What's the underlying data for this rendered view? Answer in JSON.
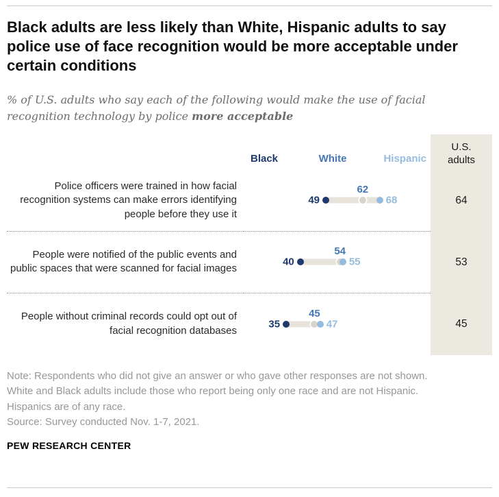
{
  "header": {
    "title": "Black adults are less likely than White, Hispanic adults to say police use of face recognition would be more acceptable under certain conditions",
    "subtitle_regular": "% of U.S. adults who say each of the following would make the use of facial recognition technology by police ",
    "subtitle_bold": "more acceptable"
  },
  "chart_data": {
    "type": "scatter",
    "subtype": "dot-plot",
    "series_labels": {
      "black": "Black",
      "white": "White",
      "hispanic": "Hispanic",
      "us": "U.S.\nadults"
    },
    "colors": {
      "navy": "#1e3a6d",
      "blue": "#4377b6",
      "light_blue": "#95bbdf",
      "panel": "#ece9e1",
      "track": "#e7e3da",
      "white_dot": "#d8d4cb"
    },
    "x_domain": [
      20,
      78
    ],
    "rows": [
      {
        "label": "Police officers were trained in how facial recognition systems can make errors identifying people before they use it",
        "black": 49,
        "white": 62,
        "hispanic": 68,
        "us_adults": 64
      },
      {
        "label": "People were notified of the public events and public spaces that were scanned for facial images",
        "black": 40,
        "white": 54,
        "hispanic": 55,
        "us_adults": 53
      },
      {
        "label": "People without criminal records could opt out of facial recognition databases",
        "black": 35,
        "white": 45,
        "hispanic": 47,
        "us_adults": 45
      }
    ]
  },
  "footer": {
    "note": "Note: Respondents who did not give an answer or who gave other responses are not shown. White and Black adults include those who report being only one race and are not Hispanic. Hispanics are of any race.",
    "source": "Source: Survey conducted Nov. 1-7, 2021.",
    "brand": "PEW RESEARCH CENTER"
  }
}
